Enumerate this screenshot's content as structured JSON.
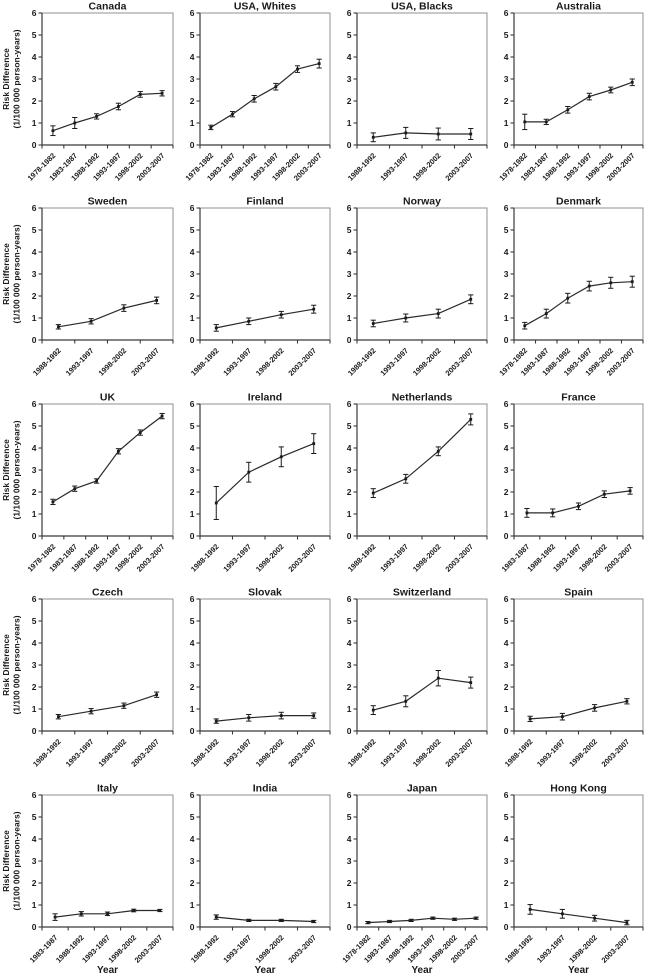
{
  "figure": {
    "ylabel_line1": "Risk Difference",
    "ylabel_line2": "(1/100 000 person-years)",
    "xlabel": "Year",
    "ylim": [
      0,
      6
    ],
    "yticks": [
      0,
      1,
      2,
      3,
      4,
      5,
      6
    ],
    "grid_rows": 5,
    "grid_cols": 4,
    "line_color": "#2a2a2a",
    "marker_color": "#1a1a1a",
    "plot_border_color": "#909090",
    "axis_color": "#3a3a3a",
    "background_color": "#ffffff"
  },
  "chart_data": [
    {
      "type": "line",
      "title": "Canada",
      "categories": [
        "1978-1982",
        "1983-1987",
        "1988-1992",
        "1993-1997",
        "1998-2002",
        "2003-2007"
      ],
      "values": [
        0.65,
        1.0,
        1.3,
        1.75,
        2.3,
        2.35
      ],
      "errors": [
        0.22,
        0.25,
        0.12,
        0.15,
        0.13,
        0.12
      ]
    },
    {
      "type": "line",
      "title": "USA, Whites",
      "categories": [
        "1978-1982",
        "1983-1987",
        "1988-1992",
        "1993-1997",
        "1998-2002",
        "2003-2007"
      ],
      "values": [
        0.8,
        1.4,
        2.1,
        2.65,
        3.45,
        3.7
      ],
      "errors": [
        0.1,
        0.12,
        0.15,
        0.15,
        0.15,
        0.2
      ]
    },
    {
      "type": "line",
      "title": "USA, Blacks",
      "categories": [
        "1988-1992",
        "1993-1997",
        "1998-2002",
        "2003-2007"
      ],
      "values": [
        0.35,
        0.55,
        0.5,
        0.5
      ],
      "errors": [
        0.2,
        0.25,
        0.27,
        0.25
      ]
    },
    {
      "type": "line",
      "title": "Australia",
      "categories": [
        "1978-1982",
        "1983-1987",
        "1988-1992",
        "1993-1997",
        "1998-2002",
        "2003-2007"
      ],
      "values": [
        1.05,
        1.05,
        1.6,
        2.2,
        2.5,
        2.85
      ],
      "errors": [
        0.35,
        0.12,
        0.15,
        0.15,
        0.13,
        0.15
      ]
    },
    {
      "type": "line",
      "title": "Sweden",
      "categories": [
        "1988-1992",
        "1993-1997",
        "1998-2002",
        "2003-2007"
      ],
      "values": [
        0.6,
        0.85,
        1.45,
        1.8
      ],
      "errors": [
        0.1,
        0.12,
        0.15,
        0.15
      ]
    },
    {
      "type": "line",
      "title": "Finland",
      "categories": [
        "1988-1992",
        "1993-1997",
        "1998-2002",
        "2003-2007"
      ],
      "values": [
        0.55,
        0.85,
        1.15,
        1.4
      ],
      "errors": [
        0.15,
        0.15,
        0.15,
        0.18
      ]
    },
    {
      "type": "line",
      "title": "Norway",
      "categories": [
        "1988-1992",
        "1993-1997",
        "1998-2002",
        "2003-2007"
      ],
      "values": [
        0.75,
        1.0,
        1.2,
        1.85
      ],
      "errors": [
        0.15,
        0.18,
        0.2,
        0.2
      ]
    },
    {
      "type": "line",
      "title": "Denmark",
      "categories": [
        "1978-1982",
        "1983-1987",
        "1988-1992",
        "1993-1997",
        "1998-2002",
        "2003-2007"
      ],
      "values": [
        0.65,
        1.2,
        1.9,
        2.45,
        2.6,
        2.65
      ],
      "errors": [
        0.15,
        0.2,
        0.22,
        0.22,
        0.25,
        0.25
      ]
    },
    {
      "type": "line",
      "title": "UK",
      "categories": [
        "1978-1982",
        "1983-1987",
        "1988-1992",
        "1993-1997",
        "1998-2002",
        "2003-2007"
      ],
      "values": [
        1.55,
        2.15,
        2.5,
        3.85,
        4.7,
        5.45
      ],
      "errors": [
        0.12,
        0.12,
        0.1,
        0.12,
        0.12,
        0.12
      ]
    },
    {
      "type": "line",
      "title": "Ireland",
      "categories": [
        "1988-1992",
        "1993-1997",
        "1998-2002",
        "2003-2007"
      ],
      "values": [
        1.5,
        2.9,
        3.6,
        4.2
      ],
      "errors": [
        0.75,
        0.45,
        0.45,
        0.45
      ]
    },
    {
      "type": "line",
      "title": "Netherlands",
      "categories": [
        "1988-1992",
        "1993-1997",
        "1998-2002",
        "2003-2007"
      ],
      "values": [
        1.95,
        2.6,
        3.85,
        5.3
      ],
      "errors": [
        0.2,
        0.2,
        0.2,
        0.25
      ]
    },
    {
      "type": "line",
      "title": "France",
      "categories": [
        "1983-1987",
        "1988-1992",
        "1993-1997",
        "1998-2002",
        "2003-2007"
      ],
      "values": [
        1.05,
        1.05,
        1.35,
        1.9,
        2.05
      ],
      "errors": [
        0.2,
        0.18,
        0.15,
        0.15,
        0.15
      ]
    },
    {
      "type": "line",
      "title": "Czech",
      "categories": [
        "1988-1992",
        "1993-1997",
        "1998-2002",
        "2003-2007"
      ],
      "values": [
        0.65,
        0.9,
        1.15,
        1.65
      ],
      "errors": [
        0.1,
        0.12,
        0.12,
        0.12
      ]
    },
    {
      "type": "line",
      "title": "Slovak",
      "categories": [
        "1988-1992",
        "1993-1997",
        "1998-2002",
        "2003-2007"
      ],
      "values": [
        0.45,
        0.6,
        0.7,
        0.7
      ],
      "errors": [
        0.1,
        0.15,
        0.15,
        0.12
      ]
    },
    {
      "type": "line",
      "title": "Switzerland",
      "categories": [
        "1988-1992",
        "1993-1997",
        "1998-2002",
        "2003-2007"
      ],
      "values": [
        0.95,
        1.35,
        2.4,
        2.2
      ],
      "errors": [
        0.2,
        0.25,
        0.35,
        0.25
      ]
    },
    {
      "type": "line",
      "title": "Spain",
      "categories": [
        "1988-1992",
        "1993-1997",
        "1998-2002",
        "2003-2007"
      ],
      "values": [
        0.55,
        0.65,
        1.05,
        1.35
      ],
      "errors": [
        0.12,
        0.15,
        0.15,
        0.12
      ]
    },
    {
      "type": "line",
      "title": "Italy",
      "categories": [
        "1983-1987",
        "1988-1992",
        "1993-1997",
        "1998-2002",
        "2003-2007"
      ],
      "values": [
        0.45,
        0.6,
        0.6,
        0.75,
        0.75
      ],
      "errors": [
        0.15,
        0.1,
        0.08,
        0.06,
        0.05
      ]
    },
    {
      "type": "line",
      "title": "India",
      "categories": [
        "1988-1992",
        "1993-1997",
        "1998-2002",
        "2003-2007"
      ],
      "values": [
        0.45,
        0.3,
        0.3,
        0.25
      ],
      "errors": [
        0.1,
        0.05,
        0.05,
        0.05
      ]
    },
    {
      "type": "line",
      "title": "Japan",
      "categories": [
        "1978-1982",
        "1983-1987",
        "1988-1992",
        "1993-1997",
        "1998-2002",
        "2003-2007"
      ],
      "values": [
        0.2,
        0.25,
        0.3,
        0.4,
        0.35,
        0.4
      ],
      "errors": [
        0.05,
        0.05,
        0.05,
        0.05,
        0.05,
        0.05
      ]
    },
    {
      "type": "line",
      "title": "Hong Kong",
      "categories": [
        "1988-1992",
        "1993-1997",
        "1998-2002",
        "2003-2007"
      ],
      "values": [
        0.8,
        0.6,
        0.4,
        0.2
      ],
      "errors": [
        0.22,
        0.2,
        0.13,
        0.1
      ]
    }
  ]
}
